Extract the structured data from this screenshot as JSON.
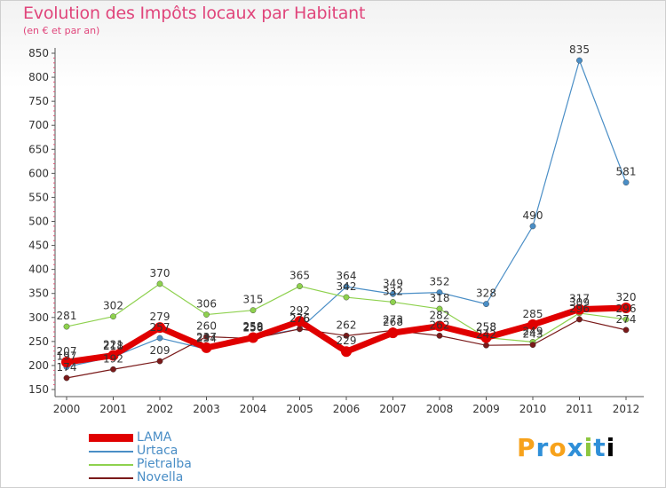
{
  "title": "Evolution des Impôts locaux par Habitant",
  "subtitle": "(en € et par an)",
  "logo": [
    "P",
    "r",
    "o",
    "x",
    "i",
    "t",
    "i"
  ],
  "chart_data": {
    "type": "line",
    "x": [
      "2000",
      "2001",
      "2002",
      "2003",
      "2004",
      "2005",
      "2006",
      "2007",
      "2008",
      "2009",
      "2010",
      "2011",
      "2012"
    ],
    "ylim": [
      150,
      850
    ],
    "yticks": [
      150,
      200,
      250,
      300,
      350,
      400,
      450,
      500,
      550,
      600,
      650,
      700,
      750,
      800,
      850
    ],
    "grid": false,
    "legend_position": "bottom-left",
    "series": [
      {
        "name": "LAMA",
        "color": "#e00000",
        "values": [
          207,
          221,
          279,
          237,
          258,
          292,
          229,
          268,
          282,
          258,
          285,
          317,
          320
        ]
      },
      {
        "name": "Urtaca",
        "color": "#4a8ec6",
        "values": [
          197,
          218,
          257,
          234,
          259,
          276,
          364,
          349,
          352,
          328,
          490,
          835,
          581
        ]
      },
      {
        "name": "Pietralba",
        "color": "#8ed14e",
        "values": [
          281,
          302,
          370,
          306,
          315,
          365,
          342,
          332,
          318,
          258,
          249,
          309,
          296
        ]
      },
      {
        "name": "Novella",
        "color": "#7a1a1a",
        "values": [
          174,
          192,
          209,
          260,
          256,
          276,
          262,
          273,
          262,
          242,
          243,
          296,
          274
        ]
      }
    ],
    "data_labels": [
      {
        "series": 0,
        "values": [
          "207",
          "221",
          "279",
          "237",
          "258",
          "292",
          "229",
          "268",
          "282",
          "258",
          "285",
          "317",
          "320"
        ]
      },
      {
        "series": 1,
        "values": [
          "197",
          "218",
          "257",
          "234",
          "259",
          "276",
          "364",
          "349",
          "352",
          "328",
          "490",
          "835",
          "581"
        ]
      },
      {
        "series": 2,
        "values": [
          "281",
          "302",
          "370",
          "306",
          "315",
          "365",
          "342",
          "332",
          "318",
          "258",
          "249",
          "309",
          "296"
        ]
      },
      {
        "series": 3,
        "values": [
          "174",
          "192",
          "209",
          "260",
          "256",
          "276",
          "262",
          "273",
          "262",
          "242",
          "243",
          "296",
          "274"
        ]
      }
    ]
  }
}
